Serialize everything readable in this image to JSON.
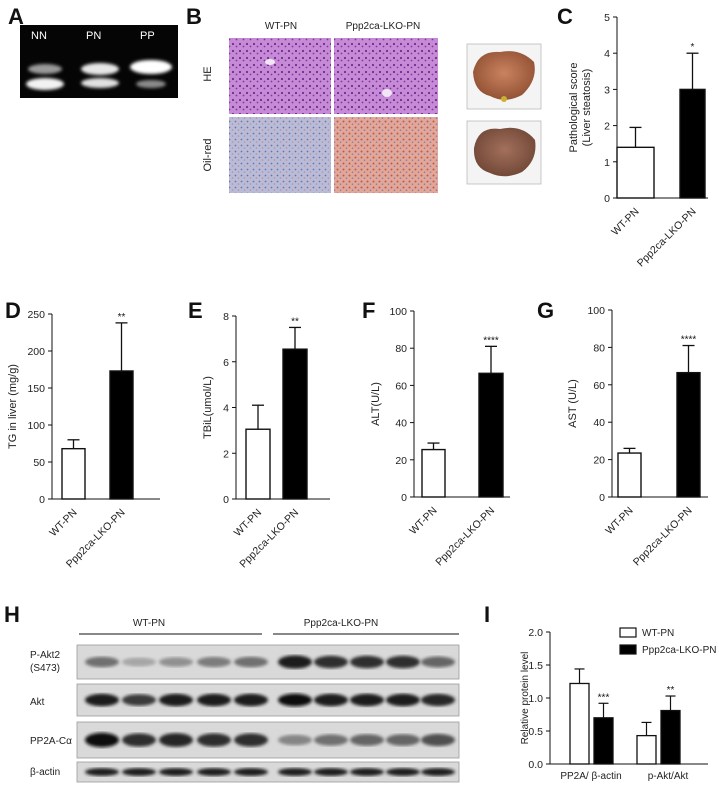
{
  "figure": {
    "panel_letters": [
      "A",
      "B",
      "C",
      "D",
      "E",
      "F",
      "G",
      "H",
      "I"
    ]
  },
  "gel": {
    "lanes": [
      "NN",
      "PN",
      "PP"
    ]
  },
  "histology": {
    "columns": [
      "WT-PN",
      "Ppp2ca-LKO-PN"
    ],
    "rows": [
      "HE",
      "Oil-red"
    ]
  },
  "chart_data": [
    {
      "id": "C",
      "type": "bar",
      "categories": [
        "WT-PN",
        "Ppp2ca-LKO-PN"
      ],
      "values": [
        1.4,
        3.0
      ],
      "errors": [
        0.55,
        1.0
      ],
      "fills": [
        "#ffffff",
        "#000000"
      ],
      "significance": [
        "",
        "*"
      ],
      "ylabel": "Pathological score",
      "ylabel2": "(Liver steatosis)",
      "ylim": [
        0,
        5
      ],
      "yticks": [
        0,
        1,
        2,
        3,
        4,
        5
      ]
    },
    {
      "id": "D",
      "type": "bar",
      "categories": [
        "WT-PN",
        "Ppp2ca-LKO-PN"
      ],
      "values": [
        68,
        173
      ],
      "errors": [
        12,
        65
      ],
      "fills": [
        "#ffffff",
        "#000000"
      ],
      "significance": [
        "",
        "**"
      ],
      "ylabel": "TG in liver (mg/g)",
      "ylim": [
        0,
        250
      ],
      "yticks": [
        0,
        50,
        100,
        150,
        200,
        250
      ]
    },
    {
      "id": "E",
      "type": "bar",
      "categories": [
        "WT-PN",
        "Ppp2ca-LKO-PN"
      ],
      "values": [
        3.05,
        6.55
      ],
      "errors": [
        1.05,
        0.95
      ],
      "fills": [
        "#ffffff",
        "#000000"
      ],
      "significance": [
        "",
        "**"
      ],
      "ylabel": "TBiL(umol/L)",
      "ylim": [
        0,
        8
      ],
      "yticks": [
        0,
        2,
        4,
        6,
        8
      ]
    },
    {
      "id": "F",
      "type": "bar",
      "categories": [
        "WT-PN",
        "Ppp2ca-LKO-PN"
      ],
      "values": [
        25.5,
        66.5
      ],
      "errors": [
        3.5,
        14.5
      ],
      "fills": [
        "#ffffff",
        "#000000"
      ],
      "significance": [
        "",
        "****"
      ],
      "ylabel": "ALT(U/L)",
      "ylim": [
        0,
        100
      ],
      "yticks": [
        0,
        20,
        40,
        60,
        80,
        100
      ]
    },
    {
      "id": "G",
      "type": "bar",
      "categories": [
        "WT-PN",
        "Ppp2ca-LKO-PN"
      ],
      "values": [
        23.5,
        66.5
      ],
      "errors": [
        2.5,
        14.5
      ],
      "fills": [
        "#ffffff",
        "#000000"
      ],
      "significance": [
        "",
        "****"
      ],
      "ylabel": "AST (U/L)",
      "ylim": [
        0,
        100
      ],
      "yticks": [
        0,
        20,
        40,
        60,
        80,
        100
      ]
    },
    {
      "id": "I",
      "type": "bar",
      "categories": [
        "PP2A/ β-actin",
        "p-Akt/Akt"
      ],
      "series": [
        {
          "name": "WT-PN",
          "values": [
            1.22,
            0.43
          ],
          "errors": [
            0.22,
            0.2
          ],
          "fill": "#ffffff",
          "significance": [
            "",
            ""
          ]
        },
        {
          "name": "Ppp2ca-LKO-PN",
          "values": [
            0.7,
            0.81
          ],
          "errors": [
            0.22,
            0.22
          ],
          "fill": "#000000",
          "significance": [
            "***",
            "**"
          ]
        }
      ],
      "ylabel": "Relative protein level",
      "ylim": [
        0,
        2.0
      ],
      "yticks": [
        "0.0",
        "0.5",
        "1.0",
        "1.5",
        "2.0"
      ],
      "legend": "top-right"
    }
  ],
  "western": {
    "groups": [
      "WT-PN",
      "Ppp2ca-LKO-PN"
    ],
    "rows": [
      {
        "label": "P-Akt2",
        "label2": "(S473)"
      },
      {
        "label": "Akt",
        "label2": ""
      },
      {
        "label": "PP2A-Cα",
        "label2": ""
      },
      {
        "label": "β-actin",
        "label2": ""
      }
    ]
  }
}
